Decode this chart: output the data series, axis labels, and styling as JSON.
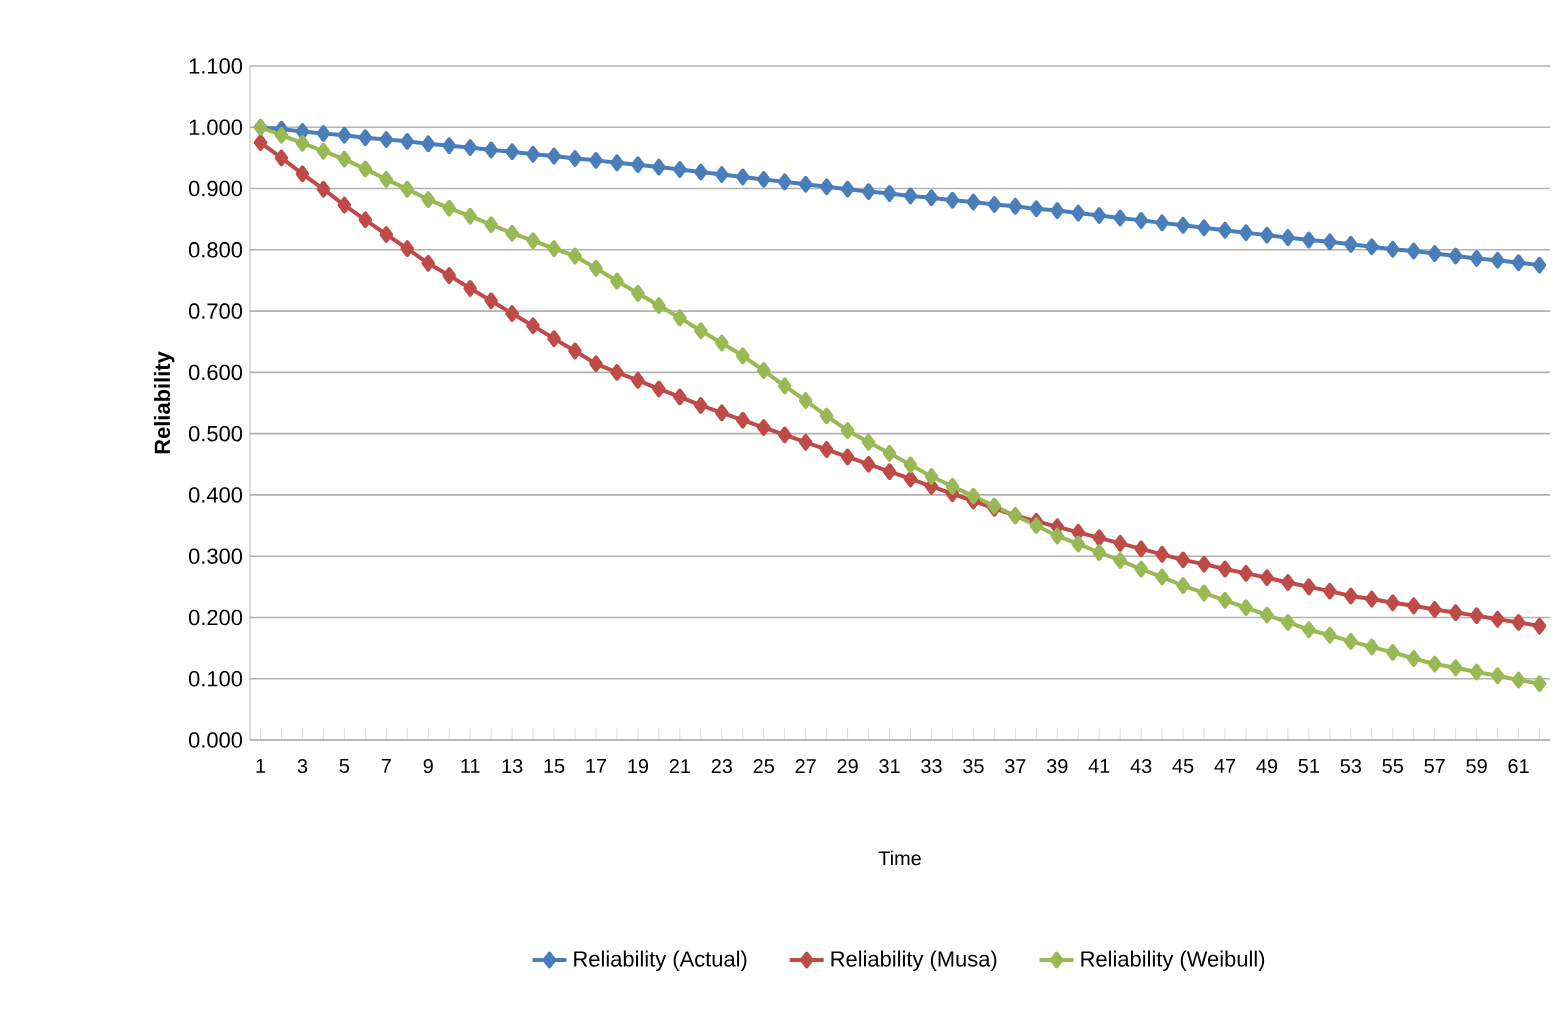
{
  "chart_data": {
    "type": "line",
    "xlabel": "Time",
    "ylabel": "Reliability",
    "categories": [
      "1",
      null,
      "3",
      null,
      "5",
      null,
      "7",
      null,
      "9",
      null,
      "11",
      null,
      "13",
      null,
      "15",
      null,
      "17",
      null,
      "19",
      null,
      "21",
      null,
      "23",
      null,
      "25",
      null,
      "27",
      null,
      "29",
      null,
      "31",
      null,
      "33",
      null,
      "35",
      null,
      "37",
      null,
      "39",
      null,
      "41",
      null,
      "43",
      null,
      "45",
      null,
      "47",
      null,
      "49",
      null,
      "51",
      null,
      "53",
      null,
      "55",
      null,
      "57",
      null,
      "59",
      null,
      "61",
      null
    ],
    "series": [
      {
        "name": "Reliability (Actual)",
        "color": "#4a7ebb",
        "values": [
          1.0,
          0.997,
          0.993,
          0.99,
          0.987,
          0.983,
          0.98,
          0.977,
          0.973,
          0.97,
          0.967,
          0.963,
          0.96,
          0.956,
          0.953,
          0.949,
          0.946,
          0.942,
          0.939,
          0.935,
          0.931,
          0.927,
          0.923,
          0.919,
          0.915,
          0.911,
          0.907,
          0.903,
          0.899,
          0.895,
          0.892,
          0.888,
          0.885,
          0.881,
          0.878,
          0.874,
          0.871,
          0.867,
          0.864,
          0.86,
          0.856,
          0.852,
          0.848,
          0.844,
          0.84,
          0.836,
          0.832,
          0.828,
          0.824,
          0.82,
          0.816,
          0.813,
          0.809,
          0.805,
          0.801,
          0.798,
          0.794,
          0.79,
          0.786,
          0.783,
          0.779,
          0.775
        ]
      },
      {
        "name": "Reliability (Musa)",
        "color": "#be4b48",
        "values": [
          0.975,
          0.95,
          0.924,
          0.899,
          0.873,
          0.849,
          0.825,
          0.802,
          0.778,
          0.758,
          0.737,
          0.717,
          0.696,
          0.676,
          0.655,
          0.635,
          0.614,
          0.6,
          0.587,
          0.573,
          0.56,
          0.546,
          0.534,
          0.522,
          0.51,
          0.498,
          0.486,
          0.474,
          0.462,
          0.45,
          0.438,
          0.426,
          0.414,
          0.402,
          0.39,
          0.378,
          0.366,
          0.357,
          0.348,
          0.339,
          0.33,
          0.321,
          0.312,
          0.303,
          0.294,
          0.287,
          0.279,
          0.272,
          0.265,
          0.257,
          0.25,
          0.243,
          0.235,
          0.23,
          0.224,
          0.219,
          0.213,
          0.208,
          0.203,
          0.197,
          0.192,
          0.186
        ]
      },
      {
        "name": "Reliability (Weibull)",
        "color": "#98b954",
        "values": [
          1.0,
          0.987,
          0.974,
          0.961,
          0.948,
          0.932,
          0.915,
          0.899,
          0.882,
          0.868,
          0.855,
          0.841,
          0.827,
          0.815,
          0.802,
          0.79,
          0.77,
          0.749,
          0.729,
          0.709,
          0.689,
          0.668,
          0.648,
          0.627,
          0.603,
          0.578,
          0.554,
          0.529,
          0.505,
          0.486,
          0.468,
          0.449,
          0.43,
          0.414,
          0.398,
          0.382,
          0.366,
          0.35,
          0.333,
          0.32,
          0.306,
          0.293,
          0.279,
          0.266,
          0.252,
          0.24,
          0.228,
          0.216,
          0.204,
          0.192,
          0.18,
          0.171,
          0.161,
          0.152,
          0.143,
          0.133,
          0.124,
          0.118,
          0.111,
          0.105,
          0.098,
          0.092
        ]
      }
    ],
    "ylim": [
      0,
      1.1
    ],
    "yticks": [
      {
        "value": 0,
        "label": "0.000"
      },
      {
        "value": 0.1,
        "label": "0.100"
      },
      {
        "value": 0.2,
        "label": "0.200"
      },
      {
        "value": 0.3,
        "label": "0.300"
      },
      {
        "value": 0.4,
        "label": "0.400"
      },
      {
        "value": 0.5,
        "label": "0.500"
      },
      {
        "value": 0.6,
        "label": "0.600"
      },
      {
        "value": 0.7,
        "label": "0.700"
      },
      {
        "value": 0.8,
        "label": "0.800"
      },
      {
        "value": 0.9,
        "label": "0.900"
      },
      {
        "value": 1.0,
        "label": "1.000"
      },
      {
        "value": 1.1,
        "label": "1.100"
      }
    ],
    "grid": "y",
    "legend": "bottom",
    "marker": "diamond",
    "line_style": "solid"
  }
}
